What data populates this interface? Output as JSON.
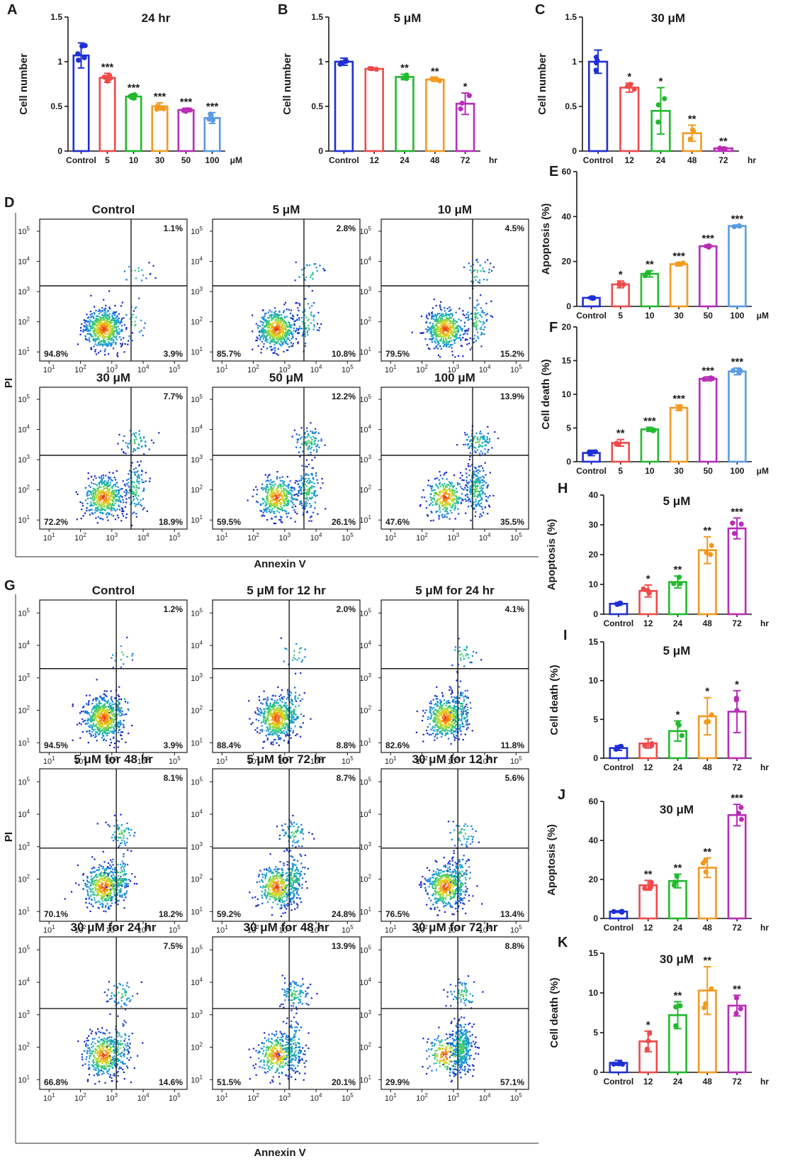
{
  "colors": {
    "blue": "#1f2fd6",
    "red": "#ef4a4a",
    "green": "#22b92e",
    "orange": "#f39a1f",
    "purple": "#b82db8",
    "lightblue": "#5a9be3"
  },
  "flow_axis_titles": {
    "x": "Annexin V",
    "y": "PI"
  },
  "flow_tick_labels": [
    "10",
    "10",
    "10",
    "10",
    "10"
  ],
  "flow_tick_exponents": [
    "1",
    "2",
    "3",
    "4",
    "5"
  ],
  "chart_data": [
    {
      "id": "A",
      "panel_label": "A",
      "type": "bar",
      "title": "24 hr",
      "ylabel": "Cell number",
      "xunit": "μM",
      "categories": [
        "Control",
        "5",
        "10",
        "30",
        "50",
        "100"
      ],
      "values": [
        1.07,
        0.82,
        0.61,
        0.5,
        0.46,
        0.37
      ],
      "errors": [
        0.14,
        0.05,
        0.03,
        0.04,
        0.02,
        0.06
      ],
      "significance": [
        "",
        "***",
        "***",
        "***",
        "***",
        "***"
      ],
      "bar_colors": [
        "blue",
        "red",
        "green",
        "orange",
        "purple",
        "lightblue"
      ],
      "ylim": [
        0,
        1.5
      ],
      "yticks": [
        0,
        0.5,
        1,
        1.5
      ],
      "ytick_labels": [
        "0",
        "0.5",
        "1",
        "1.5"
      ]
    },
    {
      "id": "B",
      "panel_label": "B",
      "type": "bar",
      "title": "5 μM",
      "ylabel": "Cell number",
      "xunit": "hr",
      "categories": [
        "Control",
        "12",
        "24",
        "48",
        "72"
      ],
      "values": [
        1.0,
        0.92,
        0.83,
        0.8,
        0.53
      ],
      "errors": [
        0.04,
        0.01,
        0.03,
        0.02,
        0.12
      ],
      "significance": [
        "",
        "",
        "**",
        "**",
        "*"
      ],
      "bar_colors": [
        "blue",
        "red",
        "green",
        "orange",
        "purple"
      ],
      "ylim": [
        0,
        1.5
      ],
      "yticks": [
        0,
        0.5,
        1,
        1.5
      ],
      "ytick_labels": [
        "0",
        "0.5",
        "1",
        "1.5"
      ]
    },
    {
      "id": "C",
      "panel_label": "C",
      "type": "bar",
      "title": "30 μM",
      "ylabel": "Cell number",
      "xunit": "hr",
      "categories": [
        "Control",
        "12",
        "24",
        "48",
        "72"
      ],
      "values": [
        1.0,
        0.71,
        0.45,
        0.2,
        0.03
      ],
      "errors": [
        0.13,
        0.05,
        0.26,
        0.09,
        0.01
      ],
      "significance": [
        "",
        "*",
        "*",
        "**",
        "**"
      ],
      "bar_colors": [
        "blue",
        "red",
        "green",
        "orange",
        "purple"
      ],
      "ylim": [
        0,
        1.5
      ],
      "yticks": [
        0,
        0.5,
        1,
        1.5
      ],
      "ytick_labels": [
        "0",
        "0.5",
        "1",
        "1.5"
      ]
    },
    {
      "id": "E",
      "panel_label": "E",
      "type": "bar",
      "title": "",
      "ylabel": "Apoptosis (%)",
      "xunit": "μM",
      "categories": [
        "Control",
        "5",
        "10",
        "30",
        "50",
        "100"
      ],
      "values": [
        3.8,
        9.8,
        14.5,
        18.8,
        26.8,
        35.8
      ],
      "errors": [
        0.3,
        1.5,
        1.4,
        0.8,
        0.6,
        0.4
      ],
      "significance": [
        "",
        "*",
        "**",
        "***",
        "***",
        "***"
      ],
      "bar_colors": [
        "blue",
        "red",
        "green",
        "orange",
        "purple",
        "lightblue"
      ],
      "ylim": [
        0,
        60
      ],
      "yticks": [
        0,
        20,
        40,
        60
      ],
      "ytick_labels": [
        "0",
        "20",
        "40",
        "60"
      ]
    },
    {
      "id": "F",
      "panel_label": "F",
      "type": "bar",
      "title": "",
      "ylabel": "Cell death (%)",
      "xunit": "μM",
      "categories": [
        "Control",
        "5",
        "10",
        "30",
        "50",
        "100"
      ],
      "values": [
        1.3,
        2.8,
        4.8,
        8.0,
        12.3,
        13.4
      ],
      "errors": [
        0.4,
        0.5,
        0.3,
        0.4,
        0.3,
        0.5
      ],
      "significance": [
        "",
        "**",
        "***",
        "***",
        "***",
        "***"
      ],
      "bar_colors": [
        "blue",
        "red",
        "green",
        "orange",
        "purple",
        "lightblue"
      ],
      "ylim": [
        0,
        20
      ],
      "yticks": [
        0,
        5,
        10,
        15,
        20
      ],
      "ytick_labels": [
        "0",
        "5",
        "10",
        "15",
        "20"
      ]
    },
    {
      "id": "H",
      "panel_label": "H",
      "type": "bar",
      "title": "5 μM",
      "ylabel": "Apoptosis (%)",
      "xunit": "hr",
      "categories": [
        "Control",
        "12",
        "24",
        "48",
        "72"
      ],
      "values": [
        3.5,
        7.8,
        10.8,
        21.5,
        28.8
      ],
      "errors": [
        0.4,
        2.0,
        2.0,
        4.5,
        3.5
      ],
      "significance": [
        "",
        "*",
        "**",
        "**",
        "***"
      ],
      "bar_colors": [
        "blue",
        "red",
        "green",
        "orange",
        "purple"
      ],
      "ylim": [
        0,
        40
      ],
      "yticks": [
        0,
        10,
        20,
        30,
        40
      ],
      "ytick_labels": [
        "0",
        "10",
        "20",
        "30",
        "40"
      ]
    },
    {
      "id": "I",
      "panel_label": "I",
      "type": "bar",
      "title": "5 μM",
      "ylabel": "Cell death (%)",
      "xunit": "hr",
      "categories": [
        "Control",
        "12",
        "24",
        "48",
        "72"
      ],
      "values": [
        1.3,
        1.9,
        3.5,
        5.4,
        6.0
      ],
      "errors": [
        0.3,
        0.6,
        1.3,
        2.4,
        2.7
      ],
      "significance": [
        "",
        "",
        "*",
        "*",
        "*"
      ],
      "bar_colors": [
        "blue",
        "red",
        "green",
        "orange",
        "purple"
      ],
      "ylim": [
        0,
        15
      ],
      "yticks": [
        0,
        5,
        10,
        15
      ],
      "ytick_labels": [
        "0",
        "5",
        "10",
        "15"
      ]
    },
    {
      "id": "J",
      "panel_label": "J",
      "type": "bar",
      "title": "30 μM",
      "ylabel": "Apoptosis (%)",
      "xunit": "hr",
      "categories": [
        "Control",
        "12",
        "24",
        "48",
        "72"
      ],
      "values": [
        3.5,
        17.0,
        19.2,
        26.0,
        53.0
      ],
      "errors": [
        0.4,
        2.5,
        3.5,
        5.0,
        5.5
      ],
      "significance": [
        "",
        "**",
        "**",
        "**",
        "***"
      ],
      "bar_colors": [
        "blue",
        "red",
        "green",
        "orange",
        "purple"
      ],
      "ylim": [
        0,
        60
      ],
      "yticks": [
        0,
        20,
        40,
        60
      ],
      "ytick_labels": [
        "0",
        "20",
        "40",
        "60"
      ]
    },
    {
      "id": "K",
      "panel_label": "K",
      "type": "bar",
      "title": "30 μM",
      "ylabel": "Cell death (%)",
      "xunit": "hr",
      "categories": [
        "Control",
        "12",
        "24",
        "48",
        "72"
      ],
      "values": [
        1.2,
        3.9,
        7.2,
        10.3,
        8.4
      ],
      "errors": [
        0.3,
        1.3,
        1.7,
        3.0,
        1.3
      ],
      "significance": [
        "",
        "*",
        "**",
        "**",
        "**"
      ],
      "bar_colors": [
        "blue",
        "red",
        "green",
        "orange",
        "purple"
      ],
      "ylim": [
        0,
        15
      ],
      "yticks": [
        0,
        5,
        10,
        15
      ],
      "ytick_labels": [
        "0",
        "5",
        "10",
        "15"
      ]
    },
    {
      "id": "D",
      "panel_label": "D",
      "type": "scatter",
      "subtype": "flow-cytometry-quadrant",
      "xlabel": "Annexin V",
      "ylabel": "PI",
      "axis_scale": "log10",
      "axis_range": [
        "10^1",
        "10^5"
      ],
      "plots": [
        {
          "title": "Control",
          "ur": "1.1%",
          "ll": "94.8%",
          "lr": "3.9%"
        },
        {
          "title": "5 μM",
          "ur": "2.8%",
          "ll": "85.7%",
          "lr": "10.8%"
        },
        {
          "title": "10 μM",
          "ur": "4.5%",
          "ll": "79.5%",
          "lr": "15.2%"
        },
        {
          "title": "30 μM",
          "ur": "7.7%",
          "ll": "72.2%",
          "lr": "18.9%"
        },
        {
          "title": "50 μM",
          "ur": "12.2%",
          "ll": "59.5%",
          "lr": "26.1%"
        },
        {
          "title": "100 μM",
          "ur": "13.9%",
          "ll": "47.6%",
          "lr": "35.5%"
        }
      ]
    },
    {
      "id": "G",
      "panel_label": "G",
      "type": "scatter",
      "subtype": "flow-cytometry-quadrant",
      "xlabel": "Annexin V",
      "ylabel": "PI",
      "axis_scale": "log10",
      "axis_range": [
        "10^1",
        "10^5"
      ],
      "plots": [
        {
          "title": "Control",
          "ur": "1.2%",
          "ll": "94.5%",
          "lr": "3.9%"
        },
        {
          "title": "5 μM for 12 hr",
          "ur": "2.0%",
          "ll": "88.4%",
          "lr": "8.8%"
        },
        {
          "title": "5 μM for 24 hr",
          "ur": "4.1%",
          "ll": "82.6%",
          "lr": "11.8%"
        },
        {
          "title": "5 μM for 48 hr",
          "ur": "8.1%",
          "ll": "70.1%",
          "lr": "18.2%"
        },
        {
          "title": "5 μM for 72 hr",
          "ur": "8.7%",
          "ll": "59.2%",
          "lr": "24.8%"
        },
        {
          "title": "30 μM for 12 hr",
          "ur": "5.6%",
          "ll": "76.5%",
          "lr": "13.4%"
        },
        {
          "title": "30 μM for 24 hr",
          "ur": "7.5%",
          "ll": "66.8%",
          "lr": "14.6%"
        },
        {
          "title": "30 μM for 48 hr",
          "ur": "13.9%",
          "ll": "51.5%",
          "lr": "20.1%"
        },
        {
          "title": "30 μM for 72 hr",
          "ur": "8.8%",
          "ll": "29.9%",
          "lr": "57.1%"
        }
      ]
    }
  ]
}
